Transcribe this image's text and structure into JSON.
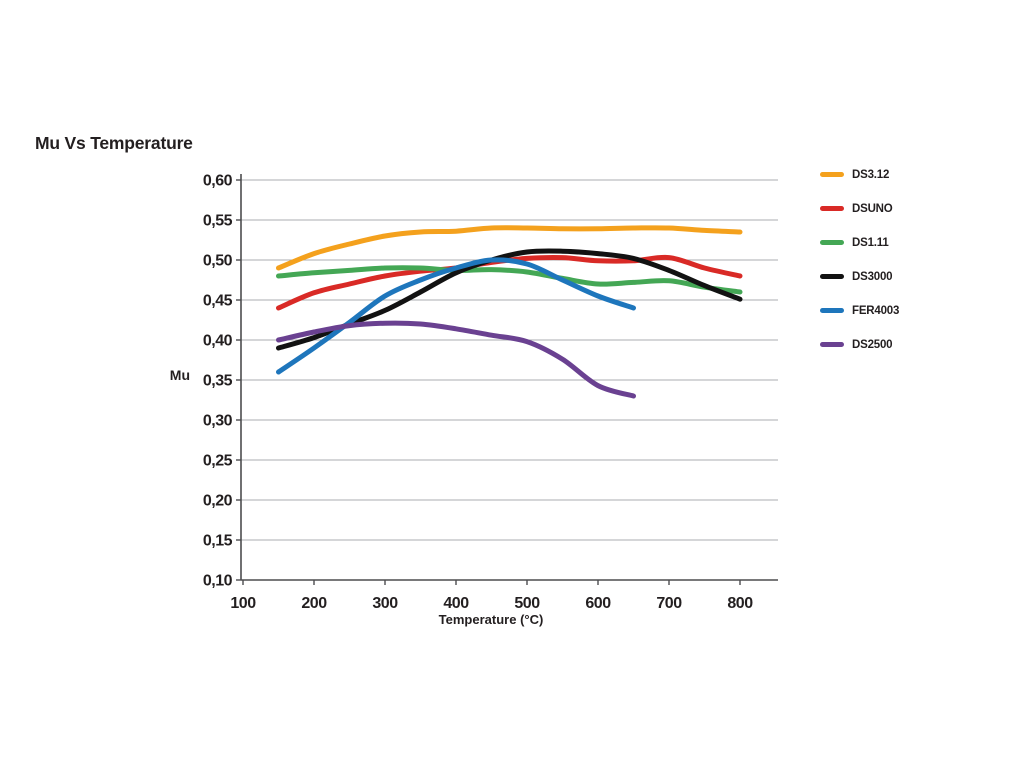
{
  "page": {
    "background": "#ffffff",
    "text_color": "#231F20"
  },
  "chart_data": {
    "type": "line",
    "title": "Mu Vs Temperature",
    "xlabel": "Temperature (°C)",
    "ylabel": "Mu",
    "x_ticks": [
      100,
      200,
      300,
      400,
      500,
      600,
      700,
      800
    ],
    "y_ticks": [
      {
        "value": 0.6,
        "label": "0,60"
      },
      {
        "value": 0.55,
        "label": "0,55"
      },
      {
        "value": 0.5,
        "label": "0,50"
      },
      {
        "value": 0.45,
        "label": "0,45"
      },
      {
        "value": 0.4,
        "label": "0,40"
      },
      {
        "value": 0.35,
        "label": "0,35"
      },
      {
        "value": 0.3,
        "label": "0,30"
      },
      {
        "value": 0.25,
        "label": "0,25"
      },
      {
        "value": 0.2,
        "label": "0,20"
      },
      {
        "value": 0.15,
        "label": "0,15"
      },
      {
        "value": 0.1,
        "label": "0,10"
      }
    ],
    "xlim": [
      100,
      850
    ],
    "ylim": [
      0.1,
      0.6
    ],
    "grid": true,
    "legend_position": "right",
    "colors": {
      "grid": "#ABADB0",
      "axis": "#4D4D4F"
    },
    "series": [
      {
        "name": "DS3.12",
        "color": "#F4A11D",
        "points": [
          [
            150,
            0.49
          ],
          [
            200,
            0.508
          ],
          [
            250,
            0.52
          ],
          [
            300,
            0.53
          ],
          [
            350,
            0.535
          ],
          [
            400,
            0.536
          ],
          [
            450,
            0.54
          ],
          [
            500,
            0.54
          ],
          [
            550,
            0.539
          ],
          [
            600,
            0.539
          ],
          [
            650,
            0.54
          ],
          [
            700,
            0.54
          ],
          [
            750,
            0.537
          ],
          [
            800,
            0.535
          ]
        ]
      },
      {
        "name": "DSUNO",
        "color": "#D92A26",
        "points": [
          [
            150,
            0.44
          ],
          [
            200,
            0.459
          ],
          [
            250,
            0.47
          ],
          [
            300,
            0.48
          ],
          [
            350,
            0.486
          ],
          [
            400,
            0.49
          ],
          [
            450,
            0.497
          ],
          [
            500,
            0.502
          ],
          [
            550,
            0.503
          ],
          [
            600,
            0.499
          ],
          [
            650,
            0.499
          ],
          [
            700,
            0.503
          ],
          [
            750,
            0.49
          ],
          [
            800,
            0.48
          ]
        ]
      },
      {
        "name": "DS1.11",
        "color": "#44A755",
        "points": [
          [
            150,
            0.48
          ],
          [
            200,
            0.484
          ],
          [
            250,
            0.487
          ],
          [
            300,
            0.49
          ],
          [
            350,
            0.49
          ],
          [
            400,
            0.487
          ],
          [
            450,
            0.488
          ],
          [
            500,
            0.485
          ],
          [
            550,
            0.477
          ],
          [
            600,
            0.47
          ],
          [
            650,
            0.472
          ],
          [
            700,
            0.474
          ],
          [
            750,
            0.466
          ],
          [
            800,
            0.46
          ]
        ]
      },
      {
        "name": "DS3000",
        "color": "#121212",
        "points": [
          [
            150,
            0.39
          ],
          [
            200,
            0.403
          ],
          [
            250,
            0.42
          ],
          [
            300,
            0.437
          ],
          [
            350,
            0.46
          ],
          [
            400,
            0.484
          ],
          [
            450,
            0.5
          ],
          [
            500,
            0.51
          ],
          [
            550,
            0.511
          ],
          [
            600,
            0.508
          ],
          [
            650,
            0.502
          ],
          [
            700,
            0.487
          ],
          [
            750,
            0.468
          ],
          [
            800,
            0.451
          ]
        ]
      },
      {
        "name": "FER4003",
        "color": "#1E76BC",
        "points": [
          [
            150,
            0.36
          ],
          [
            200,
            0.39
          ],
          [
            250,
            0.422
          ],
          [
            300,
            0.455
          ],
          [
            350,
            0.475
          ],
          [
            400,
            0.49
          ],
          [
            450,
            0.5
          ],
          [
            500,
            0.495
          ],
          [
            550,
            0.475
          ],
          [
            600,
            0.455
          ],
          [
            650,
            0.44
          ]
        ]
      },
      {
        "name": "DS2500",
        "color": "#6A4191",
        "points": [
          [
            150,
            0.4
          ],
          [
            200,
            0.41
          ],
          [
            250,
            0.418
          ],
          [
            300,
            0.421
          ],
          [
            350,
            0.42
          ],
          [
            400,
            0.414
          ],
          [
            450,
            0.406
          ],
          [
            500,
            0.398
          ],
          [
            550,
            0.376
          ],
          [
            600,
            0.343
          ],
          [
            650,
            0.33
          ]
        ]
      }
    ]
  }
}
